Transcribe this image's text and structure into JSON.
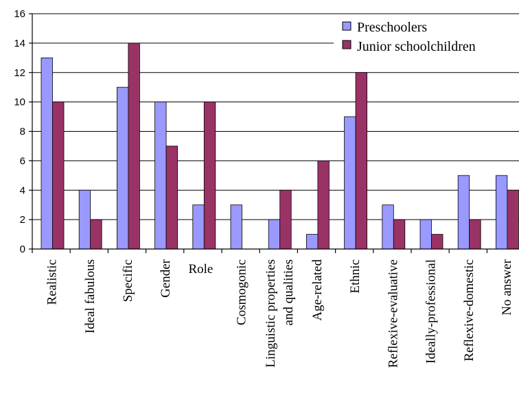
{
  "chart_data": {
    "type": "bar",
    "categories": [
      "Realistic",
      "Ideal fabulous",
      "Specific",
      "Gender",
      "Role",
      "Cosmogonic",
      "Linguistic properties\nand qualities",
      "Age-related",
      "Ethnic",
      "Reflexive-evaluative",
      "Ideally-professional",
      "Reflexive-domestic",
      "No answer"
    ],
    "series": [
      {
        "name": "Preschoolers",
        "color": "#9999ff",
        "values": [
          13,
          4,
          11,
          10,
          3,
          3,
          2,
          1,
          9,
          3,
          2,
          5,
          5
        ]
      },
      {
        "name": "Junior schoolchildren",
        "color": "#993366",
        "values": [
          10,
          2,
          14,
          7,
          10,
          0,
          4,
          6,
          12,
          2,
          1,
          2,
          4
        ]
      }
    ],
    "yticks": [
      0,
      2,
      4,
      6,
      8,
      10,
      12,
      14,
      16
    ],
    "ylim": [
      0,
      16
    ],
    "grid": true,
    "legend": "top-right",
    "title": "",
    "xlabel": "",
    "ylabel": ""
  }
}
